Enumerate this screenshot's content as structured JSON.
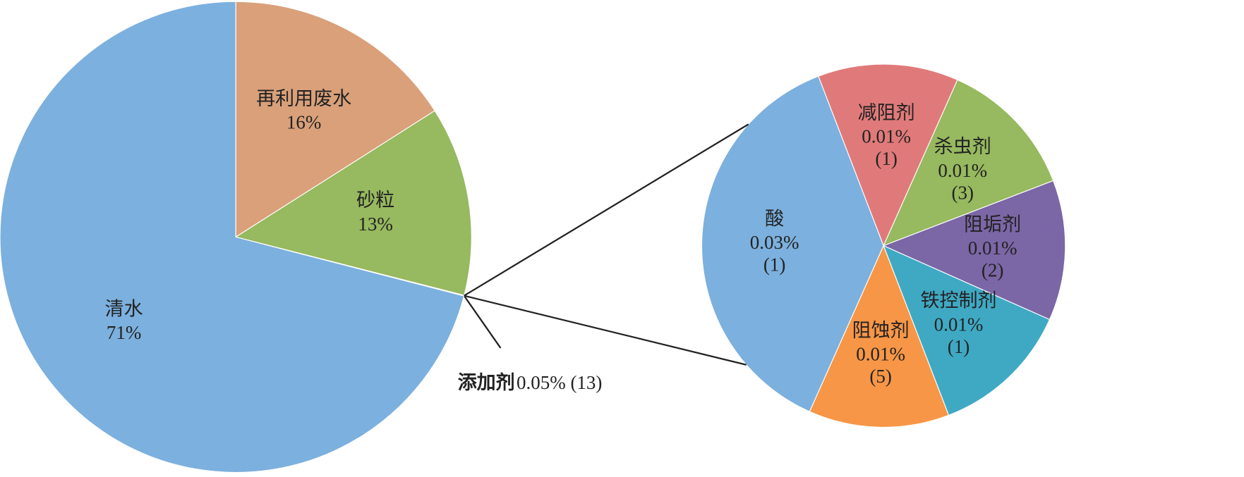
{
  "chart_data": [
    {
      "type": "pie",
      "categories": [
        "再利用废水",
        "砂粒",
        "添加剂",
        "清水"
      ],
      "values": [
        16,
        13,
        0.05,
        71
      ],
      "value_labels": [
        "16%",
        "13%",
        "0.05%",
        "71%"
      ],
      "counts": [
        null,
        null,
        13,
        null
      ],
      "count_labels": [
        null,
        null,
        "(13)",
        null
      ],
      "colors": [
        "#d9a07a",
        "#97b95f",
        "#f79646",
        "#7cb0de"
      ]
    },
    {
      "type": "pie",
      "categories": [
        "减阻剂",
        "杀虫剂",
        "阻垢剂",
        "铁控制剂",
        "阻蚀剂",
        "酸"
      ],
      "values": [
        0.01,
        0.01,
        0.01,
        0.01,
        0.01,
        0.03
      ],
      "value_labels": [
        "0.01%",
        "0.01%",
        "0.01%",
        "0.01%",
        "0.01%",
        "0.03%"
      ],
      "counts": [
        1,
        3,
        2,
        1,
        5,
        1
      ],
      "count_labels": [
        "(1)",
        "(3)",
        "(2)",
        "(1)",
        "(5)",
        "(1)"
      ],
      "colors": [
        "#e07a7a",
        "#97b95f",
        "#7b66a6",
        "#3fa9c4",
        "#f79646",
        "#7cb0de"
      ]
    }
  ]
}
